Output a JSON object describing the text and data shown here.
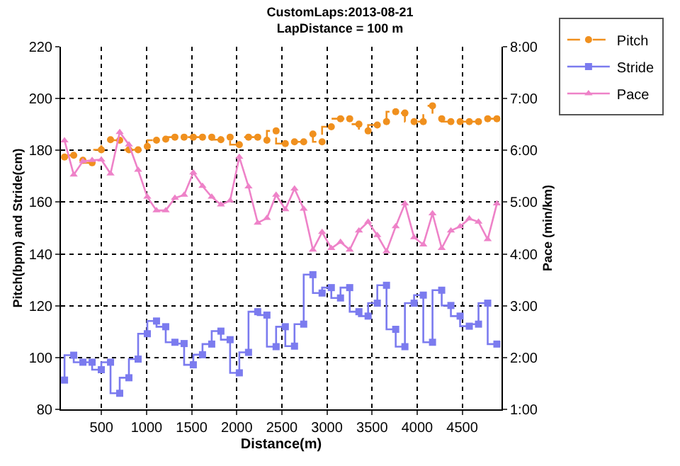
{
  "chart_data": {
    "type": "line",
    "title": "CustomLaps:2013-08-21",
    "subtitle": "LapDistance = 100 m",
    "xlabel": "Distance(m)",
    "ylabel": "Pitch(bpm) and Stride(cm)",
    "y2label": "Pace (min/km)",
    "x": [
      90,
      192,
      294,
      396,
      498,
      600,
      702,
      804,
      906,
      1008,
      1110,
      1212,
      1314,
      1416,
      1518,
      1620,
      1722,
      1824,
      1926,
      2028,
      2130,
      2232,
      2334,
      2436,
      2538,
      2640,
      2742,
      2844,
      2946,
      3048,
      3150,
      3252,
      3354,
      3456,
      3558,
      3660,
      3762,
      3864,
      3966,
      4068,
      4170,
      4272,
      4374,
      4476,
      4578,
      4680,
      4782,
      4884
    ],
    "series": [
      {
        "name": "Pitch",
        "type": "step",
        "color": "#f0901e",
        "marker": "circle",
        "line_style": "dashed",
        "values": [
          177.4,
          178.1,
          176.2,
          175.2,
          180.2,
          184.1,
          183.9,
          180.2,
          180.2,
          181.5,
          183.9,
          184.3,
          185.1,
          185.1,
          185.1,
          185.1,
          185.1,
          184.1,
          185.1,
          182.2,
          185.1,
          185.1,
          183.9,
          187.5,
          182.6,
          183.3,
          183.3,
          186.3,
          183.3,
          189.1,
          192.2,
          192.2,
          190.1,
          187.5,
          189.8,
          191.1,
          194.9,
          194.4,
          191.1,
          191.1,
          197.2,
          192.2,
          191.1,
          191.1,
          191.1,
          191.1,
          192.2,
          192.2
        ]
      },
      {
        "name": "Stride",
        "type": "step",
        "color": "#7b7bef",
        "marker": "square",
        "line_style": "solid",
        "values": [
          91.3,
          100.9,
          98.2,
          98.2,
          95.3,
          98.2,
          86.2,
          92.2,
          99.4,
          109.2,
          114.1,
          111.9,
          105.9,
          105.4,
          97.2,
          101.1,
          105.2,
          110.2,
          106.9,
          94.1,
          102.0,
          117.7,
          116.4,
          104.2,
          111.9,
          104.4,
          112.9,
          132.0,
          124.9,
          127.0,
          123.0,
          127.0,
          117.7,
          116.0,
          121.0,
          127.9,
          110.9,
          104.2,
          121.0,
          124.1,
          105.9,
          126.0,
          120.1,
          116.0,
          112.1,
          112.9,
          121.0,
          105.2
        ]
      },
      {
        "name": "Pace",
        "axis": "y2",
        "color": "#ee82c8",
        "marker": "triangle",
        "line_style": "solid",
        "values": [
          6.19,
          5.53,
          5.79,
          5.81,
          5.82,
          5.55,
          6.35,
          6.11,
          5.62,
          5.1,
          4.84,
          4.84,
          5.08,
          5.14,
          5.57,
          5.31,
          5.1,
          4.95,
          5.03,
          5.87,
          5.3,
          4.6,
          4.69,
          5.14,
          4.86,
          5.26,
          4.87,
          4.08,
          4.42,
          4.11,
          4.23,
          4.08,
          4.45,
          4.62,
          4.36,
          4.05,
          4.53,
          4.97,
          4.32,
          4.18,
          4.78,
          4.11,
          4.45,
          4.53,
          4.68,
          4.62,
          4.28,
          4.97
        ]
      }
    ],
    "xlim": [
      50,
      4935
    ],
    "xticks": [
      500,
      1000,
      1500,
      2000,
      2500,
      3000,
      3500,
      4000,
      4500
    ],
    "ylim": [
      80,
      220
    ],
    "yticks": [
      80,
      100,
      120,
      140,
      160,
      180,
      200,
      220
    ],
    "y2lim": [
      1,
      8
    ],
    "y2ticks": [
      {
        "value": 1,
        "label": "1:00"
      },
      {
        "value": 2,
        "label": "2:00"
      },
      {
        "value": 3,
        "label": "3:00"
      },
      {
        "value": 4,
        "label": "4:00"
      },
      {
        "value": 5,
        "label": "5:00"
      },
      {
        "value": 6,
        "label": "6:00"
      },
      {
        "value": 7,
        "label": "7:00"
      },
      {
        "value": 8,
        "label": "8:00"
      }
    ],
    "grid": true,
    "legend": "top right"
  }
}
